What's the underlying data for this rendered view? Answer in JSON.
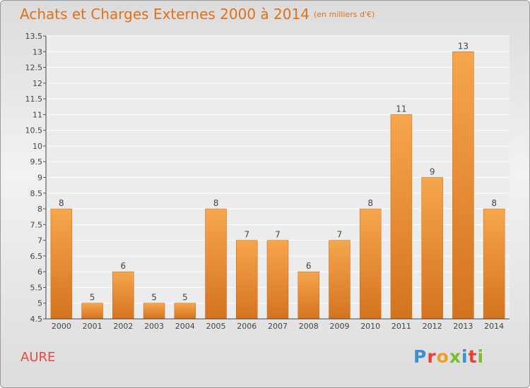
{
  "header": {
    "title": "Achats et Charges Externes 2000 à 2014",
    "unit": "(en milliers d'€)"
  },
  "footer": {
    "commune": "AURE",
    "brand": "Proxiti"
  },
  "colors": {
    "bar_light": "#f6a64d",
    "bar_dark": "#d4731f",
    "title": "#e0701a",
    "commune": "#e8483c"
  },
  "chart_data": {
    "type": "bar",
    "categories": [
      "2000",
      "2001",
      "2002",
      "2003",
      "2004",
      "2005",
      "2006",
      "2007",
      "2008",
      "2009",
      "2010",
      "2011",
      "2012",
      "2013",
      "2014"
    ],
    "values": [
      8,
      5,
      6,
      5,
      5,
      8,
      7,
      7,
      6,
      7,
      8,
      11,
      9,
      13,
      8
    ],
    "ylim": [
      4.5,
      13.5
    ],
    "yticks": [
      4.5,
      5,
      5.5,
      6,
      6.5,
      7,
      7.5,
      8,
      8.5,
      9,
      9.5,
      10,
      10.5,
      11,
      11.5,
      12,
      12.5,
      13,
      13.5
    ],
    "grid": true,
    "data_labels": true,
    "title": "Achats et Charges Externes 2000 à 2014",
    "xlabel": "",
    "ylabel": ""
  }
}
